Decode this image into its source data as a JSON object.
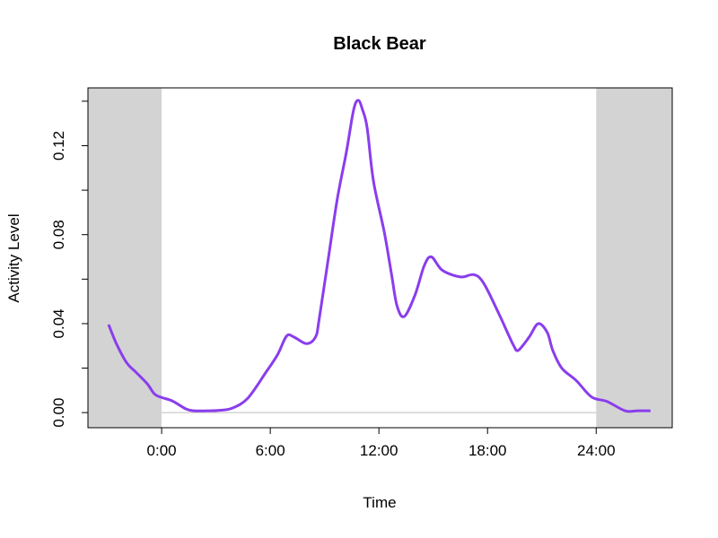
{
  "chart_data": {
    "type": "line",
    "title": "Black Bear",
    "xlabel": "Time",
    "ylabel": "Activity Level",
    "xlim": [
      -4.07,
      28.2
    ],
    "ylim": [
      -0.0068,
      0.146
    ],
    "x_ticks": [
      0,
      6,
      12,
      18,
      24
    ],
    "x_tick_labels": [
      "0:00",
      "6:00",
      "12:00",
      "18:00",
      "24:00"
    ],
    "y_ticks": [
      0,
      0.02,
      0.04,
      0.06,
      0.08,
      0.1,
      0.12,
      0.14
    ],
    "y_tick_labels": [
      "0.00",
      "",
      "0.04",
      "",
      "0.08",
      "",
      "0.12",
      ""
    ],
    "grid": false,
    "shaded_regions": [
      [
        -4.07,
        0
      ],
      [
        24,
        28.2
      ]
    ],
    "shade_color": "#d3d3d3",
    "baseline_color": "#bebebe",
    "series": [
      {
        "color": "#8a3ded",
        "x": [
          -2.93,
          -2.5,
          -1.93,
          -1.4,
          -0.8,
          -0.4,
          0,
          0.6,
          1.35,
          1.8,
          2.5,
          3.2,
          3.9,
          4.75,
          5.75,
          6.4,
          6.9,
          7.3,
          8.0,
          8.5,
          8.7,
          9.2,
          9.7,
          10.2,
          10.6,
          10.86,
          11.1,
          11.35,
          11.7,
          12.3,
          12.7,
          13.0,
          13.4,
          14.0,
          14.5,
          14.9,
          15.5,
          16.5,
          17.25,
          17.8,
          18.65,
          19.1,
          19.45,
          19.7,
          20.3,
          20.8,
          21.3,
          21.6,
          22.1,
          22.9,
          23.75,
          24.6,
          25.6,
          26.3,
          27.0
        ],
        "y": [
          0.0396,
          0.031,
          0.0224,
          0.018,
          0.013,
          0.0084,
          0.0068,
          0.0052,
          0.0016,
          0.0008,
          0.0008,
          0.001,
          0.002,
          0.0064,
          0.018,
          0.026,
          0.0344,
          0.034,
          0.031,
          0.034,
          0.042,
          0.069,
          0.096,
          0.117,
          0.136,
          0.1404,
          0.136,
          0.128,
          0.104,
          0.081,
          0.062,
          0.048,
          0.0432,
          0.053,
          0.066,
          0.07,
          0.064,
          0.061,
          0.062,
          0.058,
          0.044,
          0.036,
          0.03,
          0.028,
          0.034,
          0.04,
          0.036,
          0.028,
          0.02,
          0.0144,
          0.007,
          0.005,
          0.0008,
          0.0008,
          0.0008
        ]
      }
    ]
  }
}
